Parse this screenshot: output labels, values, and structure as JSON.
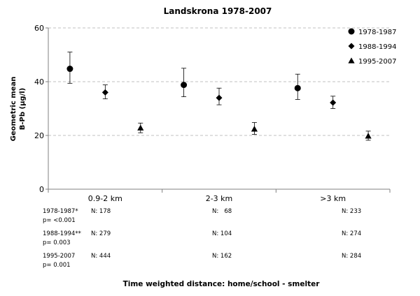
{
  "chart_data": {
    "type": "scatter",
    "title": "Landskrona 1978-2007",
    "xlabel": "Time weighted distance: home/school - smelter",
    "ylabel": [
      "Geometric mean",
      "B-Pb (µg/l)"
    ],
    "ylim": [
      0,
      60
    ],
    "yticks": [
      "0",
      "20",
      "40",
      "60"
    ],
    "grid": true,
    "legend_position": "top-right",
    "categories": [
      "0.9-2 km",
      "2-3 km",
      ">3 km"
    ],
    "series": [
      {
        "name": "1978-1987",
        "marker": "circle",
        "values": [
          44.8,
          38.8,
          37.6
        ],
        "error_low": [
          39.4,
          34.4,
          33.4
        ],
        "error_high": [
          51.0,
          45.0,
          42.8
        ]
      },
      {
        "name": "1988-1994",
        "marker": "diamond",
        "values": [
          36.0,
          34.0,
          32.2
        ],
        "error_low": [
          33.6,
          31.4,
          30.0
        ],
        "error_high": [
          38.8,
          37.6,
          34.6
        ]
      },
      {
        "name": "1995-2007",
        "marker": "triangle",
        "values": [
          22.8,
          22.4,
          19.8
        ],
        "error_low": [
          21.0,
          20.4,
          18.2
        ],
        "error_high": [
          24.6,
          24.8,
          21.6
        ]
      }
    ],
    "notes": [
      {
        "label": "1978-1987*",
        "p": "p= <0.001",
        "n": [
          "N: 178",
          "N:   68",
          "N: 233"
        ]
      },
      {
        "label": "1988-1994**",
        "p": "p= 0.003",
        "n": [
          "N: 279",
          "N: 104",
          "N: 274"
        ]
      },
      {
        "label": "1995-2007",
        "p": "p= 0.001",
        "n": [
          "N: 444",
          "N: 162",
          "N: 284"
        ]
      }
    ]
  }
}
